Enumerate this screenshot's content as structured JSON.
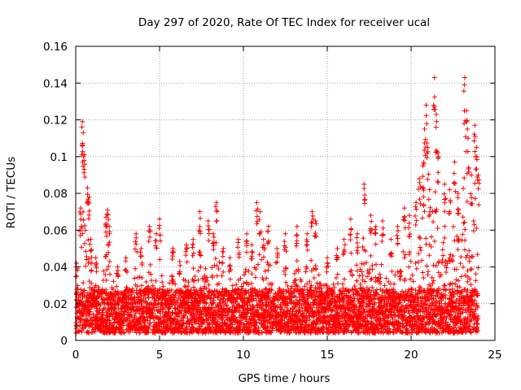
{
  "chart_data": {
    "type": "scatter",
    "title": "Day 297 of 2020, Rate Of TEC Index for receiver ucal",
    "xlabel": "GPS time / hours",
    "ylabel": "ROTI / TECUs",
    "xlim": [
      0,
      25
    ],
    "ylim": [
      0,
      0.16
    ],
    "xticks": [
      0,
      5,
      10,
      15,
      20,
      25
    ],
    "xtick_labels": [
      "0",
      "5",
      "10",
      "15",
      "20",
      "25"
    ],
    "yticks": [
      0,
      0.02,
      0.04,
      0.06,
      0.08,
      0.1,
      0.12,
      0.14,
      0.16
    ],
    "ytick_labels": [
      "0",
      "0.02",
      "0.04",
      "0.06",
      "0.08",
      "0.1",
      "0.12",
      "0.14",
      "0.16"
    ],
    "grid": true,
    "marker": "+",
    "color": "#ff0000",
    "series": [
      {
        "values": [
          [
            0.05,
            0.042
          ],
          [
            0.3,
            0.072
          ],
          [
            0.4,
            0.119
          ],
          [
            0.45,
            0.113
          ],
          [
            0.5,
            0.101
          ],
          [
            0.7,
            0.083
          ],
          [
            0.8,
            0.078
          ],
          [
            0.9,
            0.055
          ],
          [
            1.2,
            0.045
          ],
          [
            1.8,
            0.067
          ],
          [
            1.9,
            0.071
          ],
          [
            2.0,
            0.062
          ],
          [
            2.5,
            0.04
          ],
          [
            3.0,
            0.045
          ],
          [
            3.6,
            0.058
          ],
          [
            3.9,
            0.05
          ],
          [
            4.4,
            0.062
          ],
          [
            4.8,
            0.058
          ],
          [
            5.0,
            0.066
          ],
          [
            5.8,
            0.05
          ],
          [
            6.2,
            0.043
          ],
          [
            6.6,
            0.052
          ],
          [
            7.0,
            0.055
          ],
          [
            7.4,
            0.07
          ],
          [
            7.9,
            0.065
          ],
          [
            8.2,
            0.058
          ],
          [
            8.4,
            0.075
          ],
          [
            8.8,
            0.05
          ],
          [
            9.2,
            0.045
          ],
          [
            9.7,
            0.055
          ],
          [
            10.2,
            0.058
          ],
          [
            10.5,
            0.052
          ],
          [
            10.8,
            0.075
          ],
          [
            11.0,
            0.07
          ],
          [
            11.2,
            0.055
          ],
          [
            11.5,
            0.062
          ],
          [
            12.0,
            0.05
          ],
          [
            12.5,
            0.058
          ],
          [
            13.2,
            0.062
          ],
          [
            13.8,
            0.058
          ],
          [
            14.1,
            0.07
          ],
          [
            14.3,
            0.065
          ],
          [
            15.0,
            0.045
          ],
          [
            15.6,
            0.05
          ],
          [
            16.0,
            0.055
          ],
          [
            16.4,
            0.066
          ],
          [
            16.8,
            0.058
          ],
          [
            17.2,
            0.085
          ],
          [
            17.6,
            0.068
          ],
          [
            17.9,
            0.062
          ],
          [
            18.3,
            0.065
          ],
          [
            18.8,
            0.055
          ],
          [
            19.2,
            0.062
          ],
          [
            19.6,
            0.072
          ],
          [
            19.9,
            0.068
          ],
          [
            20.3,
            0.075
          ],
          [
            20.5,
            0.088
          ],
          [
            20.7,
            0.095
          ],
          [
            20.8,
            0.115
          ],
          [
            20.9,
            0.128
          ],
          [
            21.0,
            0.105
          ],
          [
            21.1,
            0.082
          ],
          [
            21.4,
            0.143
          ],
          [
            21.5,
            0.123
          ],
          [
            21.6,
            0.102
          ],
          [
            22.0,
            0.085
          ],
          [
            22.3,
            0.082
          ],
          [
            22.6,
            0.097
          ],
          [
            22.8,
            0.08
          ],
          [
            23.2,
            0.143
          ],
          [
            23.3,
            0.125
          ],
          [
            23.4,
            0.11
          ],
          [
            23.6,
            0.09
          ],
          [
            23.8,
            0.117
          ],
          [
            23.9,
            0.105
          ],
          [
            24.0,
            0.09
          ]
        ],
        "band": {
          "baseline_min": 0.004,
          "baseline_max": 0.028,
          "point_interval_hours": 0.008
        }
      }
    ]
  }
}
